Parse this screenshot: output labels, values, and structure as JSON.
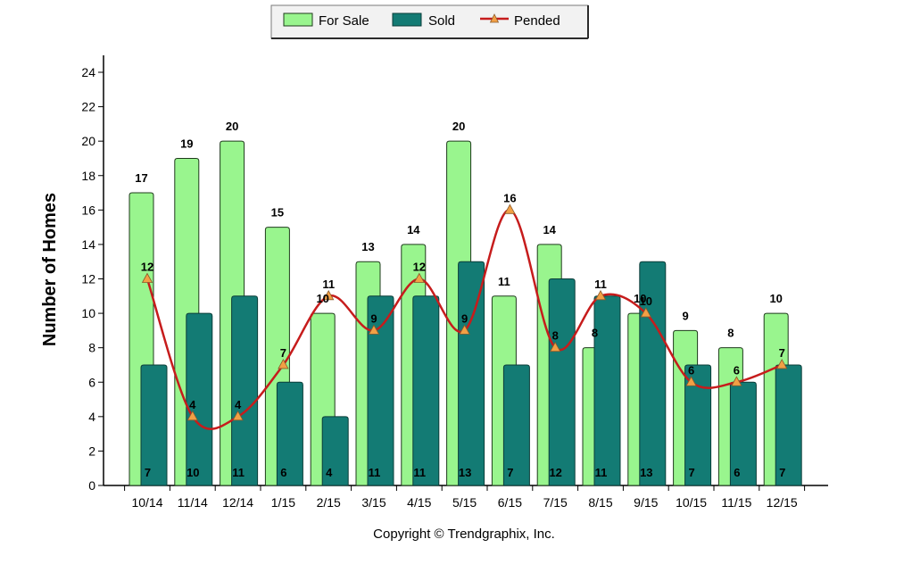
{
  "chart_data": {
    "type": "bar",
    "ylabel": "Number of Homes",
    "xlabel": "",
    "ylim": [
      0,
      24
    ],
    "yticks": [
      0,
      2,
      4,
      6,
      8,
      10,
      12,
      14,
      16,
      18,
      20,
      22,
      24
    ],
    "categories": [
      "10/14",
      "11/14",
      "12/14",
      "1/15",
      "2/15",
      "3/15",
      "4/15",
      "5/15",
      "6/15",
      "7/15",
      "8/15",
      "9/15",
      "10/15",
      "11/15",
      "12/15"
    ],
    "series": [
      {
        "name": "For Sale",
        "kind": "bar",
        "color": "#99F58E",
        "values": [
          17,
          19,
          20,
          15,
          10,
          13,
          14,
          20,
          11,
          14,
          8,
          10,
          9,
          8,
          10
        ]
      },
      {
        "name": "Sold",
        "kind": "bar",
        "color": "#137B74",
        "values": [
          7,
          10,
          11,
          6,
          4,
          11,
          11,
          13,
          7,
          12,
          11,
          13,
          7,
          6,
          7
        ]
      },
      {
        "name": "Pended",
        "kind": "line",
        "color": "#C61C1C",
        "marker_color": "#F2A045",
        "values": [
          12,
          4,
          4,
          7,
          11,
          9,
          12,
          9,
          16,
          8,
          11,
          10,
          6,
          6,
          7
        ]
      }
    ],
    "legend_position": "top-center",
    "grid": false,
    "footer": "Copyright © Trendgraphix, Inc."
  }
}
